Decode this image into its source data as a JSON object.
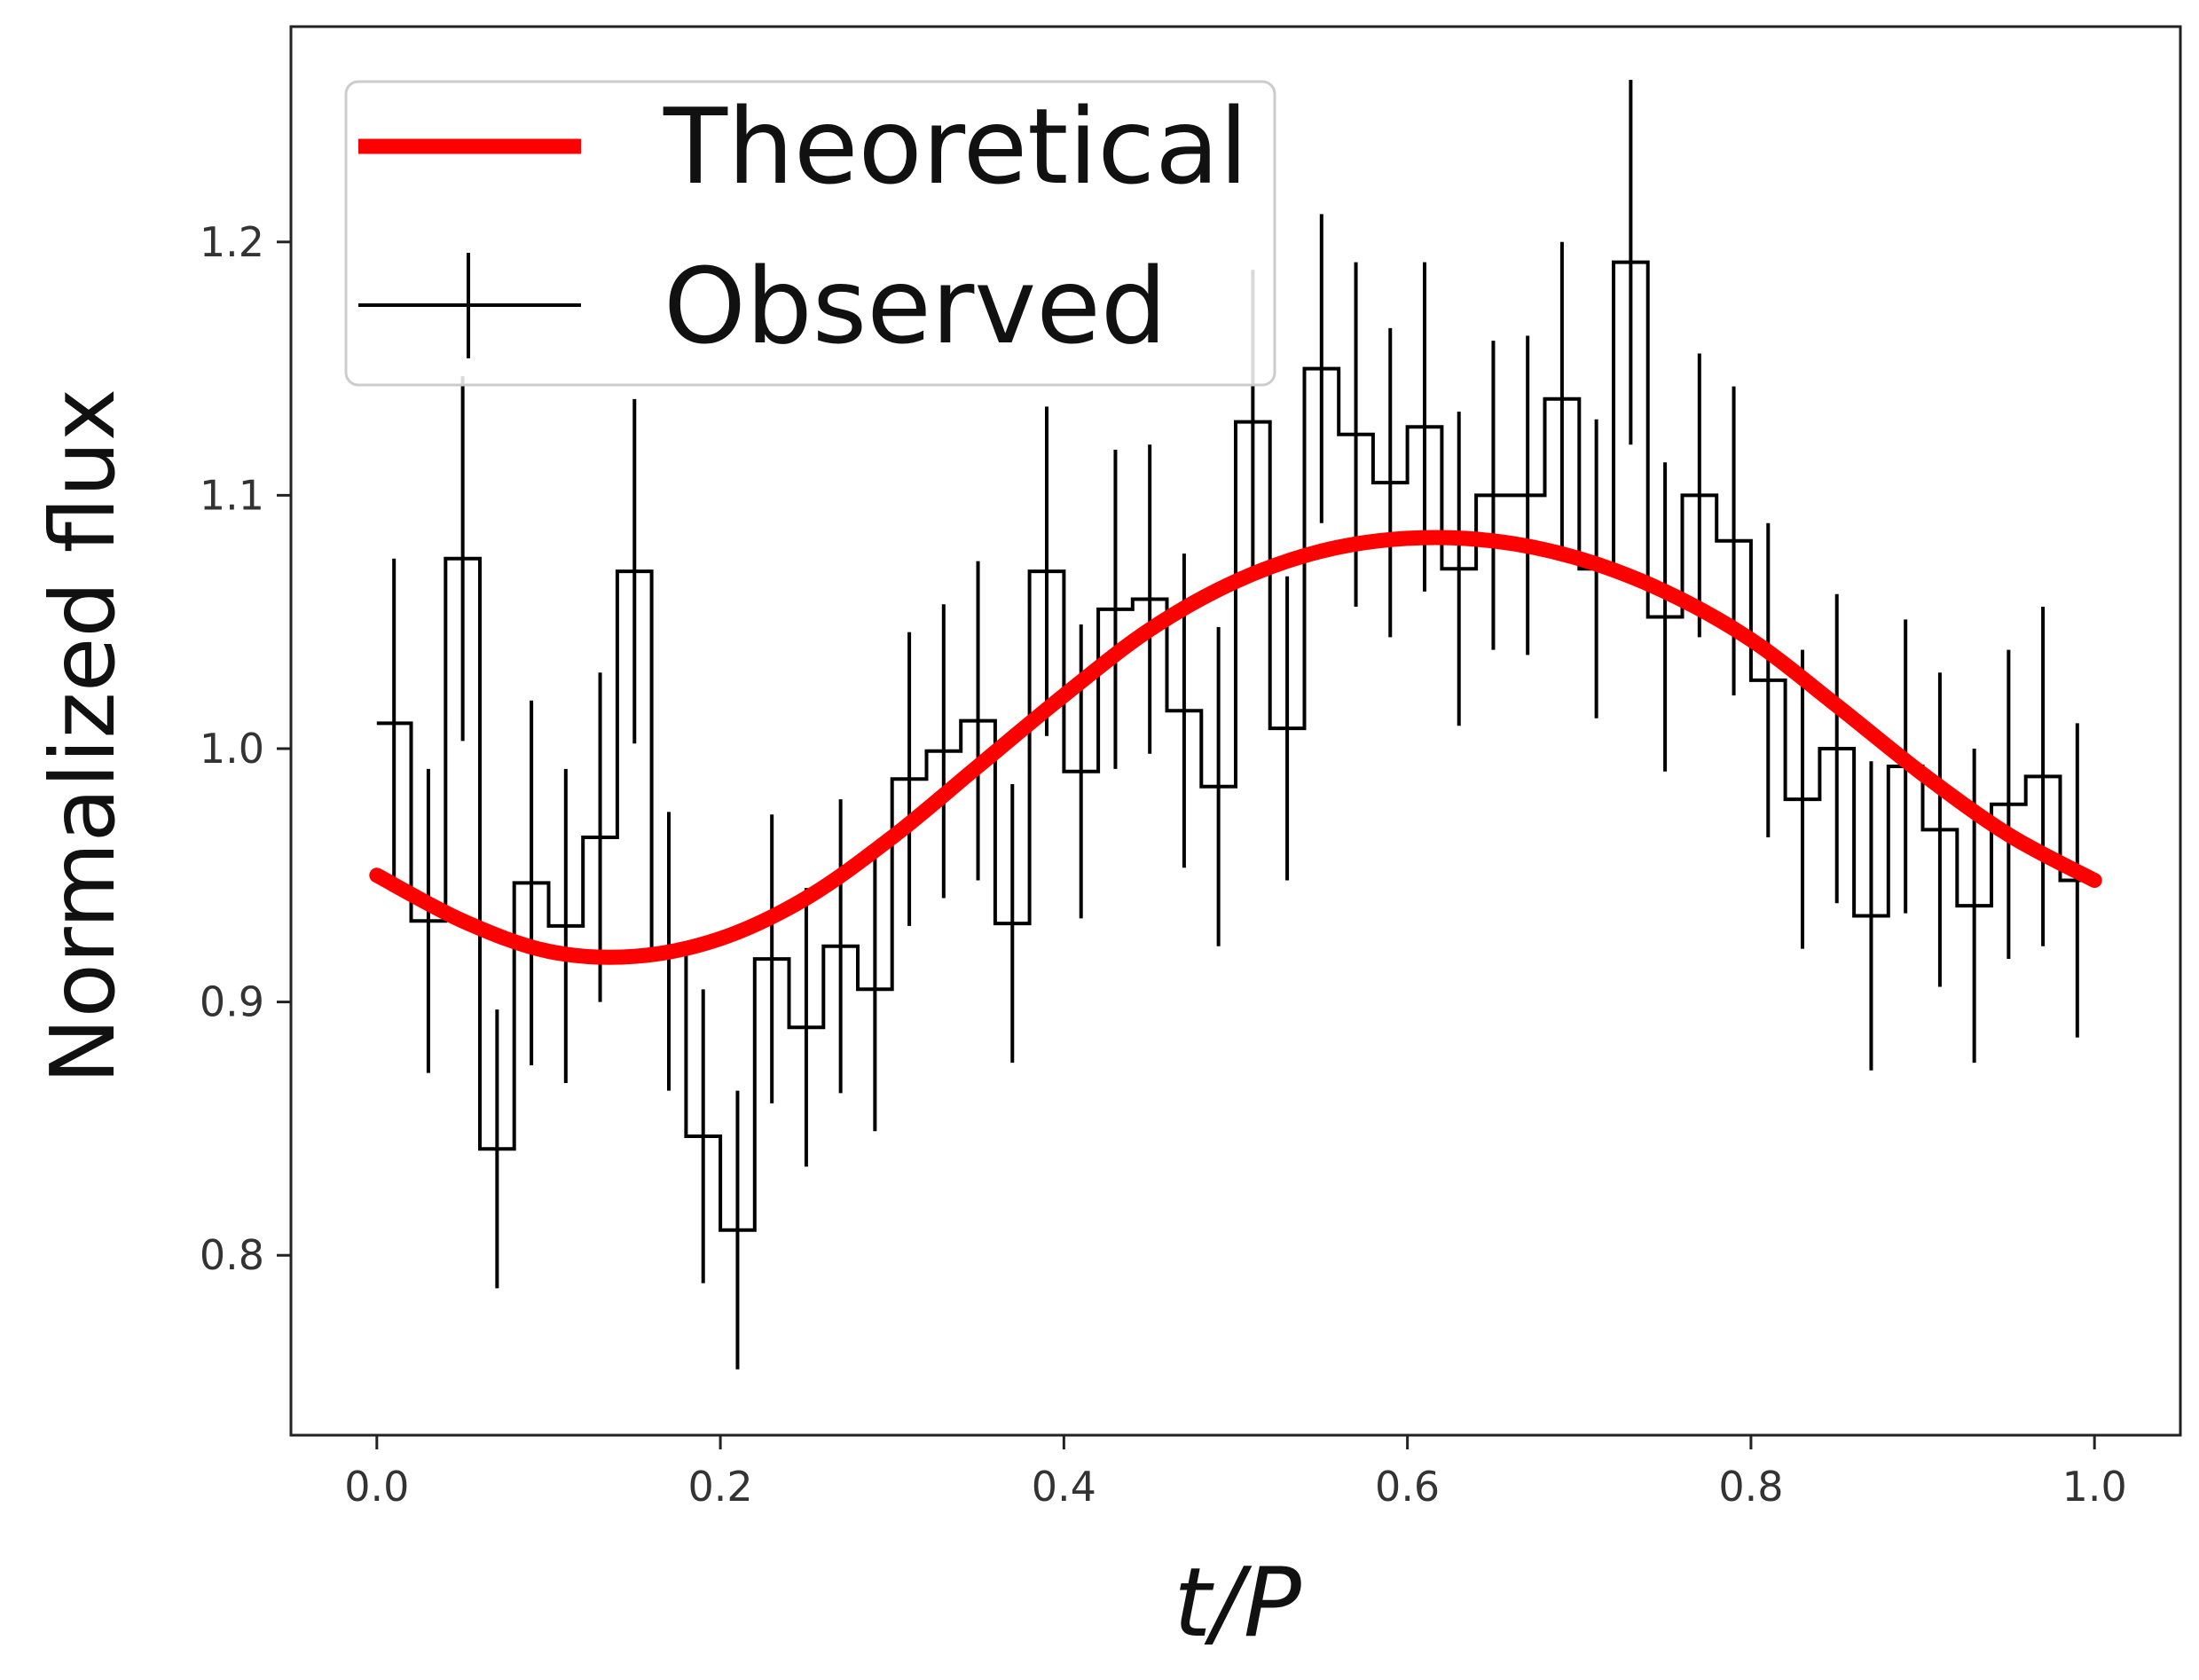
{
  "chart_data": {
    "type": "line",
    "title": "",
    "xlabel": "t/P",
    "ylabel": "Normalized flux",
    "xlim": [
      -0.05,
      1.05
    ],
    "ylim": [
      0.729,
      1.285
    ],
    "xticks": [
      0.0,
      0.2,
      0.4,
      0.6,
      0.8,
      1.0
    ],
    "xtick_labels": [
      "0.0",
      "0.2",
      "0.4",
      "0.6",
      "0.8",
      "1.0"
    ],
    "yticks": [
      0.8,
      0.9,
      1.0,
      1.1,
      1.2
    ],
    "ytick_labels": [
      "0.8",
      "0.9",
      "1.0",
      "1.1",
      "1.2"
    ],
    "grid": false,
    "legend_position": "top-left",
    "series": [
      {
        "name": "Theoretical",
        "style": "line",
        "color": "#ff0000",
        "x": [
          0.0,
          0.05,
          0.1,
          0.15,
          0.2,
          0.25,
          0.3,
          0.35,
          0.4,
          0.45,
          0.5,
          0.55,
          0.6,
          0.65,
          0.7,
          0.75,
          0.8,
          0.85,
          0.9,
          0.95,
          1.0
        ],
        "y": [
          0.95,
          0.932,
          0.92,
          0.918,
          0.925,
          0.941,
          0.965,
          0.993,
          1.021,
          1.047,
          1.066,
          1.078,
          1.083,
          1.082,
          1.075,
          1.062,
          1.043,
          1.017,
          0.99,
          0.966,
          0.948
        ]
      },
      {
        "name": "Observed",
        "style": "step with error bars",
        "color": "#000000",
        "x": [
          0.01,
          0.03,
          0.05,
          0.07,
          0.09,
          0.11,
          0.13,
          0.15,
          0.17,
          0.19,
          0.21,
          0.23,
          0.25,
          0.27,
          0.29,
          0.31,
          0.33,
          0.35,
          0.37,
          0.39,
          0.41,
          0.43,
          0.45,
          0.47,
          0.49,
          0.51,
          0.53,
          0.55,
          0.57,
          0.59,
          0.61,
          0.63,
          0.65,
          0.67,
          0.69,
          0.71,
          0.73,
          0.75,
          0.77,
          0.79,
          0.81,
          0.83,
          0.85,
          0.87,
          0.89,
          0.91,
          0.93,
          0.95,
          0.97,
          0.99
        ],
        "y": [
          1.01,
          0.932,
          1.075,
          0.842,
          0.947,
          0.93,
          0.965,
          1.07,
          0.92,
          0.847,
          0.81,
          0.917,
          0.89,
          0.922,
          0.905,
          0.988,
          0.999,
          1.011,
          0.931,
          1.07,
          0.991,
          1.055,
          1.059,
          1.015,
          0.985,
          1.129,
          1.008,
          1.15,
          1.124,
          1.105,
          1.127,
          1.071,
          1.1,
          1.1,
          1.138,
          1.071,
          1.192,
          1.052,
          1.1,
          1.082,
          1.027,
          0.98,
          1.0,
          0.934,
          0.993,
          0.968,
          0.938,
          0.978,
          0.989,
          0.948
        ],
        "yerr": [
          0.065,
          0.06,
          0.072,
          0.055,
          0.072,
          0.062,
          0.065,
          0.068,
          0.055,
          0.058,
          0.055,
          0.057,
          0.055,
          0.058,
          0.056,
          0.058,
          0.058,
          0.063,
          0.055,
          0.065,
          0.058,
          0.063,
          0.061,
          0.062,
          0.063,
          0.06,
          0.06,
          0.061,
          0.068,
          0.061,
          0.065,
          0.062,
          0.061,
          0.063,
          0.062,
          0.059,
          0.072,
          0.061,
          0.056,
          0.061,
          0.062,
          0.059,
          0.061,
          0.061,
          0.058,
          0.062,
          0.062,
          0.061,
          0.067,
          0.062
        ]
      }
    ]
  }
}
